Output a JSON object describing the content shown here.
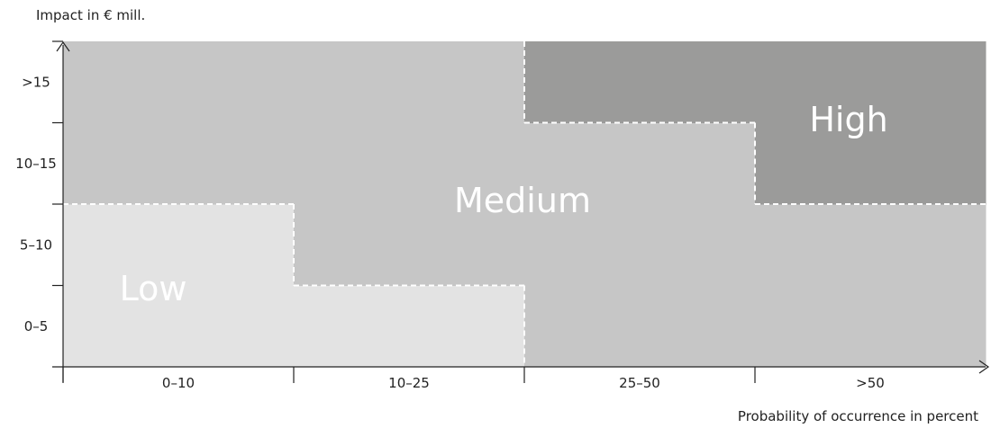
{
  "chart_data": {
    "type": "heatmap",
    "ylabel": "Impact in € mill.",
    "xlabel": "Probability of occurrence in percent",
    "x_categories": [
      "0–10",
      "10–25",
      "25–50",
      ">50"
    ],
    "y_categories": [
      "0–5",
      "5–10",
      "10–15",
      ">15"
    ],
    "levels": {
      "low": {
        "label": "Low",
        "color": "#e3e3e3"
      },
      "medium": {
        "label": "Medium",
        "color": "#c6c6c6"
      },
      "high": {
        "label": "High",
        "color": "#9b9b9a"
      }
    },
    "grid": [
      [
        "low",
        "low",
        "medium",
        "medium"
      ],
      [
        "low",
        "medium",
        "medium",
        "medium"
      ],
      [
        "medium",
        "medium",
        "medium",
        "high"
      ],
      [
        "medium",
        "medium",
        "high",
        "high"
      ]
    ],
    "boundary_color": "#ffffff",
    "axis_color": "#222222"
  }
}
